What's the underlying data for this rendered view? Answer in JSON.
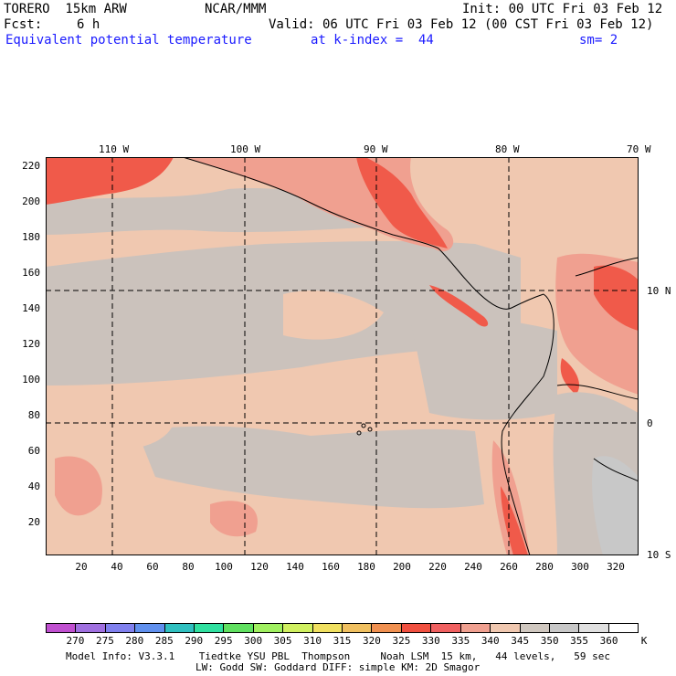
{
  "header": {
    "model": "TORERO  15km ARW",
    "org": "NCAR/MMM",
    "init": "Init: 00 UTC Fri 03 Feb 12",
    "fcst_label": "Fcst:",
    "fcst_value": "6 h",
    "valid": "Valid: 06 UTC Fri 03 Feb 12 (00 CST Fri 03 Feb 12)",
    "field": "Equivalent potential temperature",
    "level": "at k-index =  44",
    "smooth": "sm= 2"
  },
  "map": {
    "lon_labels": [
      "110 W",
      "100 W",
      "90 W",
      "80 W",
      "70 W"
    ],
    "lat_labels": [
      "10 N",
      "0",
      "10 S"
    ],
    "y_ticks": [
      "20",
      "40",
      "60",
      "80",
      "100",
      "120",
      "140",
      "160",
      "180",
      "200",
      "220"
    ],
    "x_ticks": [
      "20",
      "40",
      "60",
      "80",
      "100",
      "120",
      "140",
      "160",
      "180",
      "200",
      "220",
      "240",
      "260",
      "280",
      "300",
      "320"
    ]
  },
  "legend": {
    "values": [
      "270",
      "275",
      "280",
      "285",
      "290",
      "295",
      "300",
      "305",
      "310",
      "315",
      "320",
      "325",
      "330",
      "335",
      "340",
      "345",
      "350",
      "355",
      "360"
    ],
    "unit": "K",
    "colors": [
      "#c050d0",
      "#a070e0",
      "#8080ee",
      "#6090ee",
      "#30c0c0",
      "#30e0a0",
      "#60e060",
      "#a0f060",
      "#d0f060",
      "#f0e060",
      "#f0c060",
      "#f09050",
      "#f05040",
      "#f06060",
      "#f0a090",
      "#f0c8b0",
      "#d0c8c0",
      "#c8c8c8",
      "#e0e0e0",
      "#ffffff"
    ]
  },
  "footer": {
    "line1": "Model Info: V3.3.1    Tiedtke YSU PBL  Thompson     Noah LSM  15 km,   44 levels,   59 sec",
    "line2": "LW: Godd SW: Goddard DIFF: simple KM: 2D Smagor"
  }
}
